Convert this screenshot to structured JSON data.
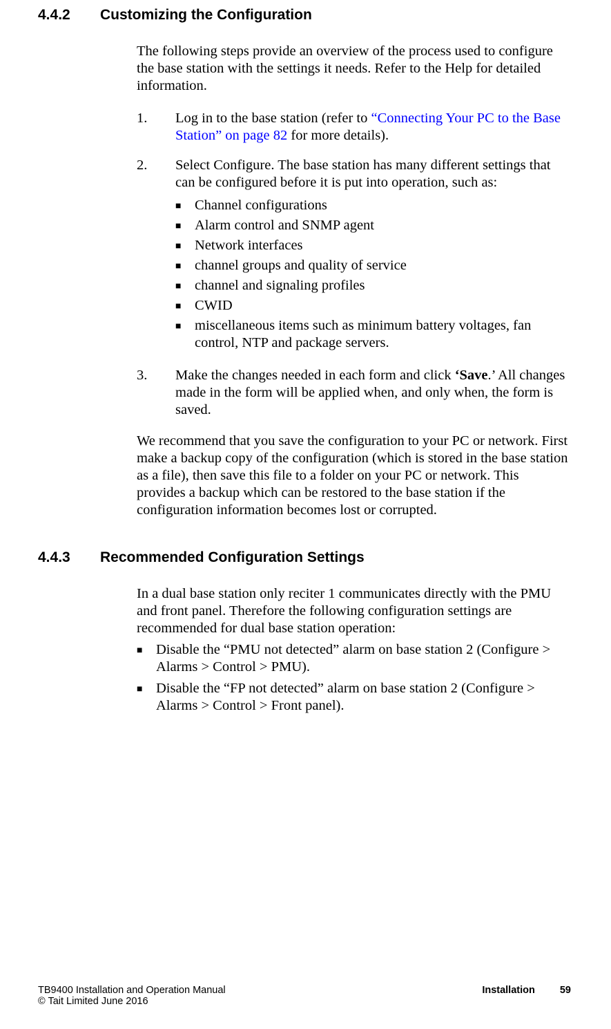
{
  "section1": {
    "number": "4.4.2",
    "title": "Customizing the Configuration",
    "intro": "The following steps provide an overview of the process used to configure the base station with the settings it needs. Refer to the Help for detailed information.",
    "step1_pre": "Log in to the base station (refer to ",
    "step1_link": "“Connecting Your PC to the Base Station” on page 82",
    "step1_post": " for more details).",
    "step2_text": "Select Configure. The base station has many different settings that can be configured before it is put into operation, such as:",
    "bullets": {
      "b1": "Channel configurations",
      "b2": "Alarm control and SNMP agent",
      "b3": "Network interfaces",
      "b4": "channel groups and quality of service",
      "b5": "channel and signaling profiles",
      "b6": "CWID",
      "b7": "miscellaneous items such as minimum battery voltages, fan control, NTP and package servers."
    },
    "step3_pre": "Make the changes needed in each form and click ",
    "step3_bold": "‘Save",
    "step3_post": ".’ All changes made in the form will be applied when, and only when, the form is saved.",
    "closing": "We recommend that you save the configuration to your PC or network. First make a backup copy of the configuration (which is stored in the base station as a file), then save this file to a folder on your PC or network. This provides a backup which can be restored to the base station if the configuration information becomes lost or corrupted."
  },
  "section2": {
    "number": "4.4.3",
    "title": "Recommended Configuration Settings",
    "intro": "In a dual base station only reciter 1 communicates directly with the PMU and front panel. Therefore the following configuration settings are recommended for dual base station operation:",
    "bullets": {
      "b1": "Disable the “PMU not detected” alarm on base station 2 (Configure > Alarms > Control > PMU).",
      "b2": "Disable the “FP not detected” alarm on base station 2 (Configure > Alarms > Control > Front panel)."
    }
  },
  "footer": {
    "left_line1": "TB9400 Installation and Operation Manual",
    "left_line2": "© Tait Limited June 2016",
    "right_label": "Installation",
    "page_number": "59"
  },
  "list_numbers": {
    "n1": "1.",
    "n2": "2.",
    "n3": "3."
  },
  "bullet_char": "■"
}
